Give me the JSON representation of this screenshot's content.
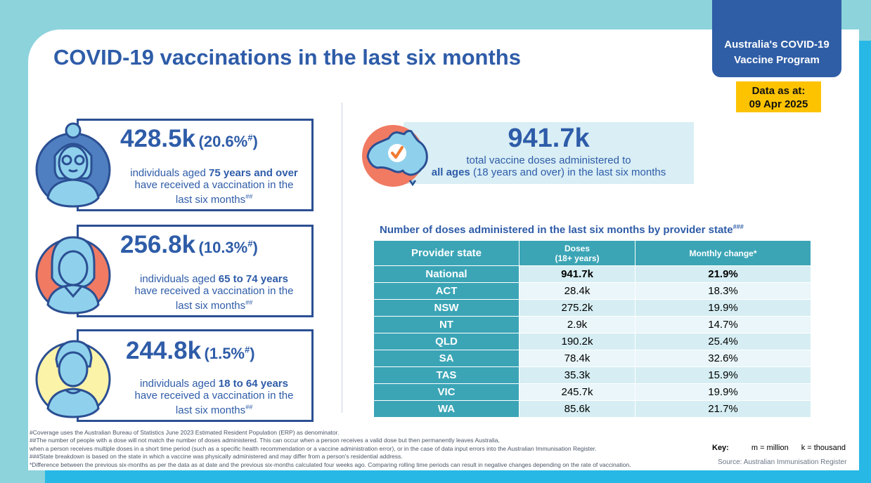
{
  "badge": {
    "line1": "Australia's COVID-19",
    "line2": "Vaccine Program"
  },
  "date": {
    "label": "Data as at:",
    "value": "09 Apr 2025"
  },
  "title": "COVID-19 vaccinations in the last six months",
  "cards": [
    {
      "count": "428.5k",
      "pct": "(20.6%",
      "pct_mark": "#",
      "pct_close": ")",
      "desc_pre": "individuals aged ",
      "desc_bold": "75 years and over",
      "desc_mid": "have received a vaccination in the",
      "desc_end": "last six months",
      "desc_mark": "##",
      "avatar_color": "#4f7fc0"
    },
    {
      "count": "256.8k",
      "pct": "(10.3%",
      "pct_mark": "#",
      "pct_close": ")",
      "desc_pre": "individuals aged ",
      "desc_bold": "65 to 74 years",
      "desc_mid": "have received a vaccination in the",
      "desc_end": "last six months",
      "desc_mark": "##",
      "avatar_color": "#f07a62"
    },
    {
      "count": "244.8k",
      "pct": "(1.5%",
      "pct_mark": "#",
      "pct_close": ")",
      "desc_pre": "individuals aged ",
      "desc_bold": "18 to 64 years",
      "desc_mid": "have received a vaccination in the",
      "desc_end": "last six months",
      "desc_mark": "##",
      "avatar_color": "#fbf3a8"
    }
  ],
  "total": {
    "count": "941.7k",
    "line1": "total vaccine doses administered to",
    "line2_bold": "all ages",
    "line2_rest": " (18 years and over) in the last six months"
  },
  "table": {
    "title": "Number of doses administered in the last six months by provider state",
    "title_mark": "###",
    "headers": {
      "state": "Provider state",
      "doses_line1": "Doses",
      "doses_line2": "(18+ years)",
      "change": "Monthly change*"
    },
    "rows": [
      {
        "state": "National",
        "doses": "941.7k",
        "change": "21.9%"
      },
      {
        "state": "ACT",
        "doses": "28.4k",
        "change": "18.3%"
      },
      {
        "state": "NSW",
        "doses": "275.2k",
        "change": "19.9%"
      },
      {
        "state": "NT",
        "doses": "2.9k",
        "change": "14.7%"
      },
      {
        "state": "QLD",
        "doses": "190.2k",
        "change": "25.4%"
      },
      {
        "state": "SA",
        "doses": "78.4k",
        "change": "32.6%"
      },
      {
        "state": "TAS",
        "doses": "35.3k",
        "change": "15.9%"
      },
      {
        "state": "VIC",
        "doses": "245.7k",
        "change": "19.9%"
      },
      {
        "state": "WA",
        "doses": "85.6k",
        "change": "21.7%"
      }
    ]
  },
  "footnotes": [
    "#Coverage uses the Australian Bureau of Statistics June 2023 Estimated Resident Population (ERP) as denominator.",
    "##The number of people with a dose will not match the number of doses administered. This can occur when a person receives a valid dose but then permanently leaves Australia,",
    "when a person receives multiple doses in a short time period (such as a specific health recommendation or a vaccine administration error), or in the case of data input errors into the Australian Immunisation Register.",
    "###State breakdown is based on the state in which a vaccine was physically administered and may differ from a person's residential address.",
    "*Difference between the previous six-months as per the data as at date and the previous six-months calculated four weeks ago. Comparing rolling time periods can result in negative changes depending on the rate of vaccination."
  ],
  "key": {
    "label": "Key:",
    "million": "m = million",
    "thousand": "k = thousand"
  },
  "source": "Source: Australian Immunisation Register",
  "colors": {
    "primary": "#2e5ca8",
    "teal": "#3ba5b6",
    "badge": "#2f5ea6",
    "date_box": "#fdc300",
    "map_fill": "#f07a62",
    "check": "#f07a30"
  }
}
